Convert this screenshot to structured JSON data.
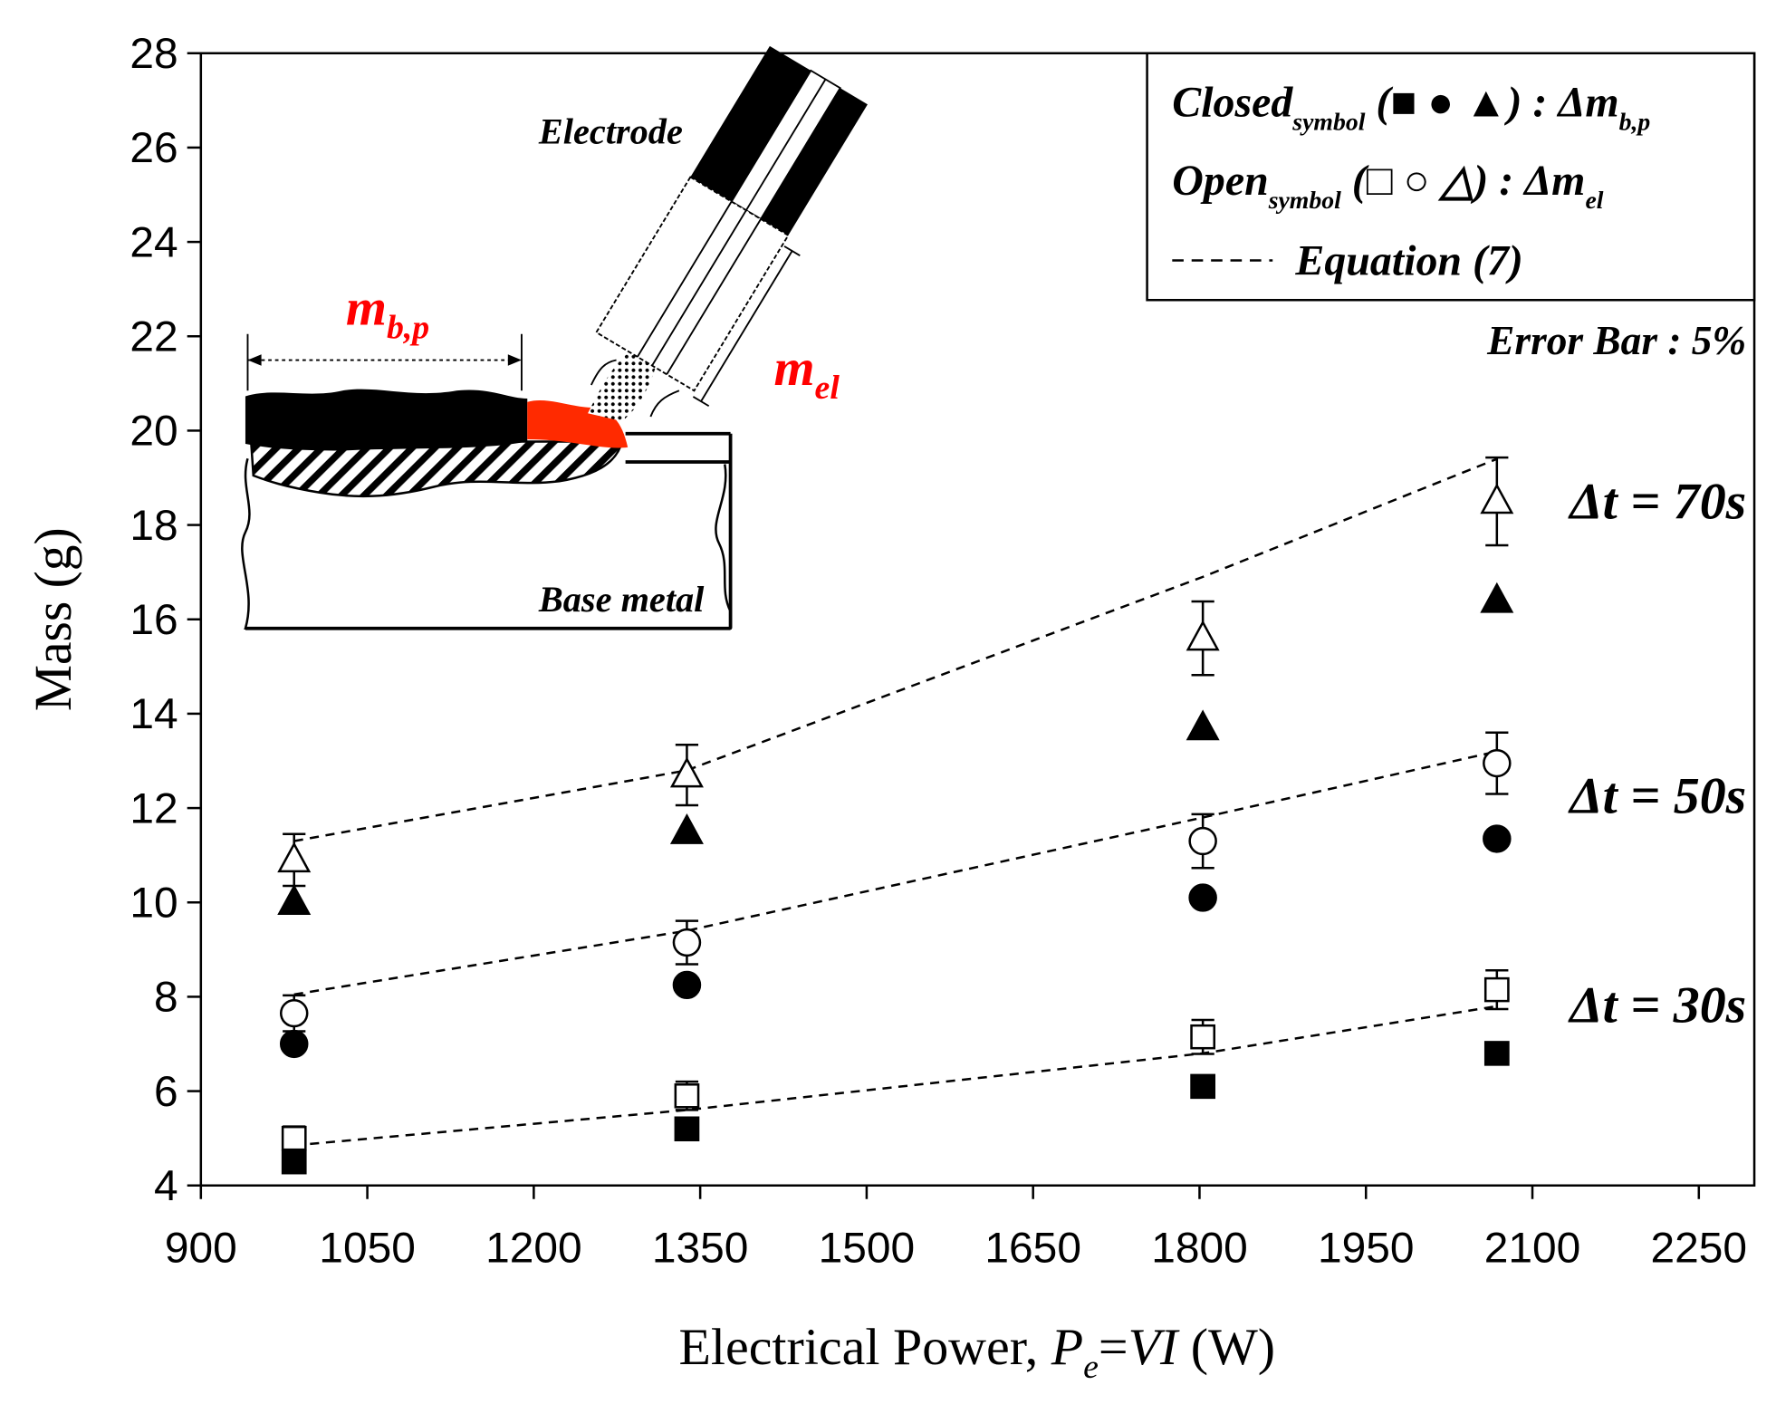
{
  "chart_data": {
    "type": "scatter",
    "y_label": "Mass (g)",
    "x_label_parts": [
      "Electrical Power, ",
      "P",
      "e",
      "=",
      "VI",
      " (W)"
    ],
    "xlim": [
      900,
      2300
    ],
    "ylim": [
      4,
      28
    ],
    "xticks": [
      900,
      1050,
      1200,
      1350,
      1500,
      1650,
      1800,
      1950,
      2100,
      2250
    ],
    "yticks": [
      4,
      6,
      8,
      10,
      12,
      14,
      16,
      18,
      20,
      22,
      24,
      26,
      28
    ],
    "x": [
      984,
      1338,
      1803,
      2068
    ],
    "color": "#000000",
    "series": [
      {
        "marker": "square",
        "filled": true,
        "values": [
          4.5,
          5.2,
          6.1,
          6.8
        ]
      },
      {
        "marker": "square",
        "filled": false,
        "values": [
          5.0,
          5.9,
          7.15,
          8.15
        ],
        "errors": [
          0.25,
          0.3,
          0.36,
          0.41
        ]
      },
      {
        "marker": "circle",
        "filled": true,
        "values": [
          7.0,
          8.25,
          10.1,
          11.35
        ]
      },
      {
        "marker": "circle",
        "filled": false,
        "values": [
          7.65,
          9.15,
          11.3,
          12.95
        ],
        "errors": [
          0.38,
          0.46,
          0.57,
          0.65
        ]
      },
      {
        "marker": "triangle",
        "filled": true,
        "values": [
          10.0,
          11.5,
          13.7,
          16.4
        ]
      },
      {
        "marker": "triangle",
        "filled": false,
        "values": [
          10.9,
          12.7,
          15.6,
          18.5
        ],
        "errors": [
          0.55,
          0.64,
          0.78,
          0.93
        ]
      }
    ],
    "equation_lines": [
      {
        "values": [
          4.85,
          5.6,
          6.8,
          7.8
        ]
      },
      {
        "values": [
          8.05,
          9.4,
          11.8,
          13.2
        ]
      },
      {
        "values": [
          11.3,
          12.8,
          16.9,
          19.4
        ]
      }
    ],
    "annotations": [
      "Δt = 30s",
      "Δt = 50s",
      "Δt = 70s",
      "Error Bar : 5%"
    ],
    "legend": {
      "closed": [
        "Closed",
        "symbol",
        " (■ ● ▲) : Δm",
        "b,p"
      ],
      "open": [
        "Open",
        "symbol",
        " (□ ○ △) : Δm",
        "el"
      ],
      "equation": "Equation (7)"
    },
    "inset": {
      "electrode": "Electrode",
      "base_metal": "Base metal",
      "m_bp": [
        "m",
        "b,p"
      ],
      "m_el": [
        "m",
        "el"
      ]
    }
  }
}
